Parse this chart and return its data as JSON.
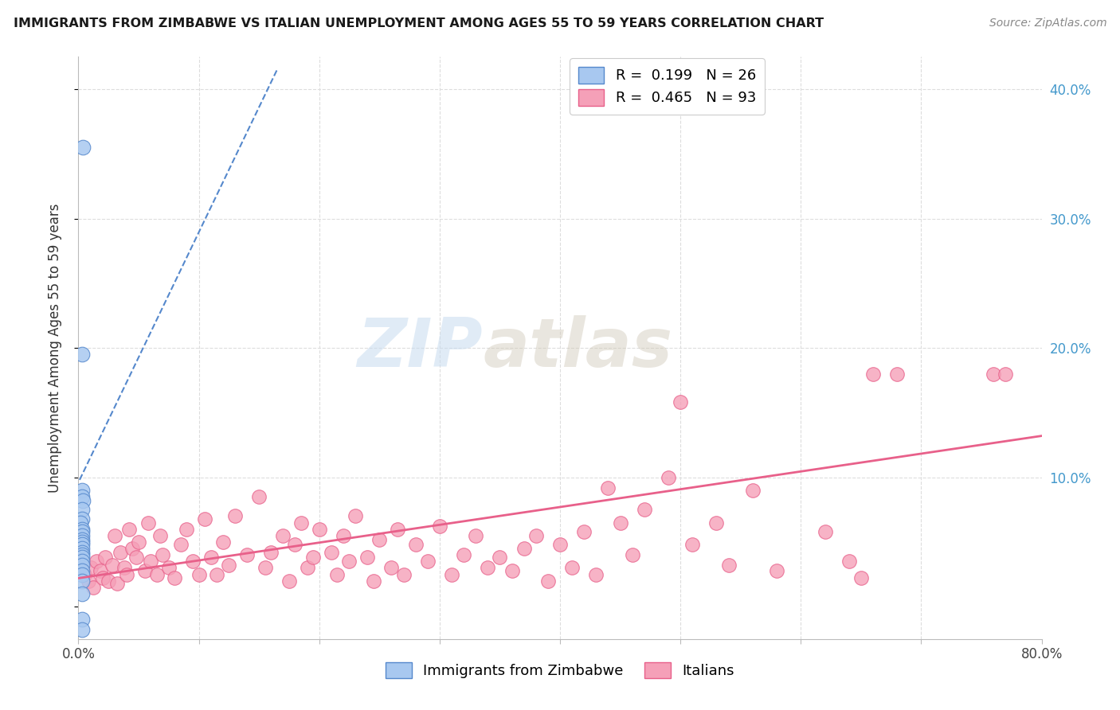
{
  "title": "IMMIGRANTS FROM ZIMBABWE VS ITALIAN UNEMPLOYMENT AMONG AGES 55 TO 59 YEARS CORRELATION CHART",
  "source": "Source: ZipAtlas.com",
  "ylabel": "Unemployment Among Ages 55 to 59 years",
  "xlim": [
    0.0,
    0.8
  ],
  "ylim": [
    -0.025,
    0.425
  ],
  "color_blue": "#A8C8F0",
  "color_pink": "#F5A0B8",
  "line_blue": "#5588CC",
  "line_pink": "#E8608A",
  "blue_scatter_x": [
    0.004,
    0.003,
    0.003,
    0.003,
    0.004,
    0.003,
    0.003,
    0.002,
    0.003,
    0.003,
    0.003,
    0.003,
    0.003,
    0.003,
    0.003,
    0.003,
    0.003,
    0.003,
    0.003,
    0.003,
    0.003,
    0.003,
    0.003,
    0.003,
    0.003,
    0.003
  ],
  "blue_scatter_y": [
    0.355,
    0.195,
    0.09,
    0.085,
    0.082,
    0.075,
    0.068,
    0.065,
    0.06,
    0.058,
    0.055,
    0.052,
    0.05,
    0.048,
    0.045,
    0.042,
    0.04,
    0.038,
    0.035,
    0.032,
    0.028,
    0.025,
    0.02,
    0.01,
    -0.01,
    -0.018
  ],
  "pink_scatter_x": [
    0.005,
    0.008,
    0.01,
    0.012,
    0.015,
    0.018,
    0.02,
    0.022,
    0.025,
    0.028,
    0.03,
    0.032,
    0.035,
    0.038,
    0.04,
    0.042,
    0.045,
    0.048,
    0.05,
    0.055,
    0.058,
    0.06,
    0.065,
    0.068,
    0.07,
    0.075,
    0.08,
    0.085,
    0.09,
    0.095,
    0.1,
    0.105,
    0.11,
    0.115,
    0.12,
    0.125,
    0.13,
    0.14,
    0.15,
    0.155,
    0.16,
    0.17,
    0.175,
    0.18,
    0.185,
    0.19,
    0.195,
    0.2,
    0.21,
    0.215,
    0.22,
    0.225,
    0.23,
    0.24,
    0.245,
    0.25,
    0.26,
    0.265,
    0.27,
    0.28,
    0.29,
    0.3,
    0.31,
    0.32,
    0.33,
    0.34,
    0.35,
    0.36,
    0.37,
    0.38,
    0.39,
    0.4,
    0.41,
    0.42,
    0.43,
    0.44,
    0.45,
    0.46,
    0.47,
    0.49,
    0.5,
    0.51,
    0.53,
    0.54,
    0.56,
    0.58,
    0.62,
    0.64,
    0.65,
    0.66,
    0.68,
    0.76,
    0.77
  ],
  "pink_scatter_y": [
    0.025,
    0.02,
    0.03,
    0.015,
    0.035,
    0.028,
    0.022,
    0.038,
    0.02,
    0.032,
    0.055,
    0.018,
    0.042,
    0.03,
    0.025,
    0.06,
    0.045,
    0.038,
    0.05,
    0.028,
    0.065,
    0.035,
    0.025,
    0.055,
    0.04,
    0.03,
    0.022,
    0.048,
    0.06,
    0.035,
    0.025,
    0.068,
    0.038,
    0.025,
    0.05,
    0.032,
    0.07,
    0.04,
    0.085,
    0.03,
    0.042,
    0.055,
    0.02,
    0.048,
    0.065,
    0.03,
    0.038,
    0.06,
    0.042,
    0.025,
    0.055,
    0.035,
    0.07,
    0.038,
    0.02,
    0.052,
    0.03,
    0.06,
    0.025,
    0.048,
    0.035,
    0.062,
    0.025,
    0.04,
    0.055,
    0.03,
    0.038,
    0.028,
    0.045,
    0.055,
    0.02,
    0.048,
    0.03,
    0.058,
    0.025,
    0.092,
    0.065,
    0.04,
    0.075,
    0.1,
    0.158,
    0.048,
    0.065,
    0.032,
    0.09,
    0.028,
    0.058,
    0.035,
    0.022,
    0.18,
    0.18,
    0.18,
    0.18
  ],
  "blue_trend_x": [
    0.001,
    0.165
  ],
  "blue_trend_y": [
    0.098,
    0.415
  ],
  "pink_trend_x": [
    0.0,
    0.8
  ],
  "pink_trend_y": [
    0.022,
    0.132
  ],
  "watermark_zip": "ZIP",
  "watermark_atlas": "atlas",
  "background_color": "#FFFFFF",
  "grid_color": "#DDDDDD",
  "legend_items": [
    {
      "r": "0.199",
      "n": "26",
      "color": "#A8C8F0",
      "edge": "#5588CC"
    },
    {
      "r": "0.465",
      "n": "93",
      "color": "#F5A0B8",
      "edge": "#E8608A"
    }
  ]
}
